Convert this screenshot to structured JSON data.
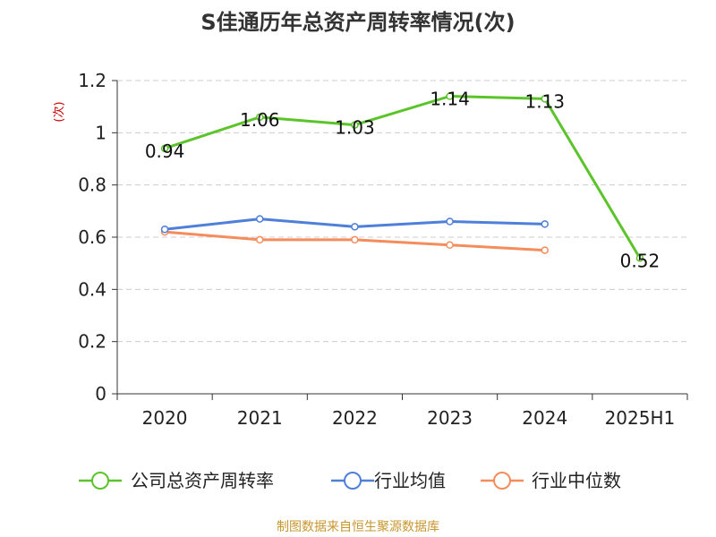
{
  "chart_data": {
    "type": "line",
    "title": "S佳通历年总资产周转率情况(次)",
    "ylabel": "(次)",
    "xlabel": "",
    "categories": [
      "2020",
      "2021",
      "2022",
      "2023",
      "2024",
      "2025H1"
    ],
    "ylim": [
      0,
      1.2
    ],
    "yticks": [
      "0",
      "0.2",
      "0.4",
      "0.6",
      "0.8",
      "1",
      "1.2"
    ],
    "ytick_values": [
      0,
      0.2,
      0.4,
      0.6,
      0.8,
      1,
      1.2
    ],
    "grid": true,
    "legend_position": "bottom",
    "series": [
      {
        "name": "公司总资产周转率",
        "color": "#5ac42a",
        "values": [
          0.94,
          1.06,
          1.03,
          1.14,
          1.13,
          0.52
        ],
        "labels": [
          "0.94",
          "1.06",
          "1.03",
          "1.14",
          "1.13",
          "0.52"
        ]
      },
      {
        "name": "行业均值",
        "color": "#4e7fd9",
        "values": [
          0.63,
          0.67,
          0.64,
          0.66,
          0.65,
          null
        ]
      },
      {
        "name": "行业中位数",
        "color": "#f48c5c",
        "values": [
          0.62,
          0.59,
          0.59,
          0.57,
          0.55,
          null
        ]
      }
    ],
    "source": "制图数据来自恒生聚源数据库"
  }
}
